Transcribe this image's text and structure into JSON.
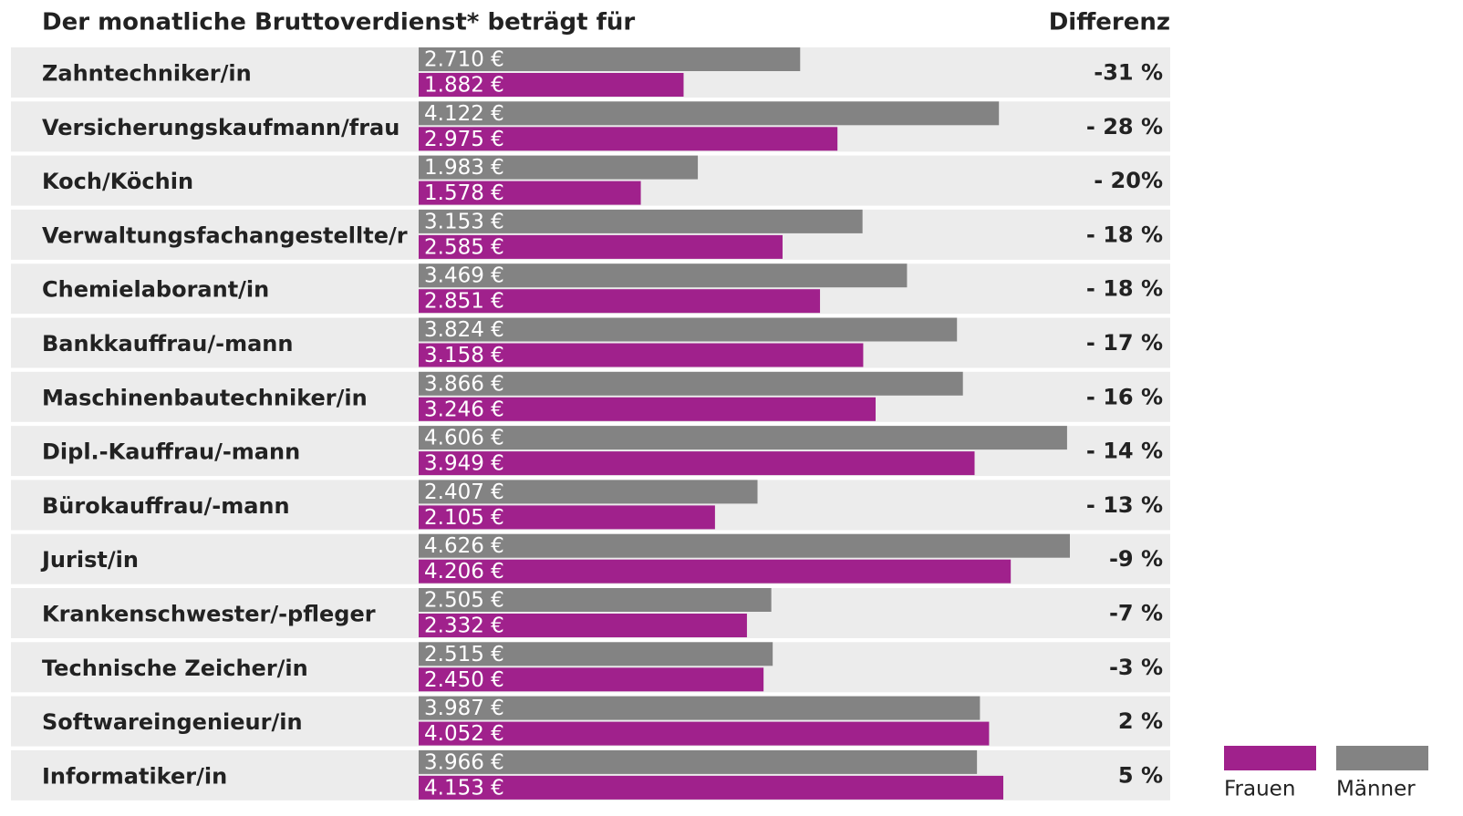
{
  "chart_data": {
    "type": "bar",
    "orientation": "horizontal",
    "title": "Der monatliche Bruttoverdienst* beträgt für",
    "difference_title": "Differenz",
    "categories": [
      "Zahntechniker/in",
      "Versicherungskaufmann/frau",
      "Koch/Köchin",
      "Verwaltungsfachangestellte/r",
      "Chemielaborant/in",
      "Bankkauffrau/-mann",
      "Maschinenbautechniker/in",
      "Dipl.-Kauffrau/-mann",
      "Bürokauffrau/-mann",
      "Jurist/in",
      "Krankenschwester/-pfleger",
      "Technische Zeicher/in",
      "Softwareingenieur/in",
      "Informatiker/in"
    ],
    "series": [
      {
        "name": "Männer",
        "color": "#838383",
        "values": [
          2710,
          4122,
          1983,
          3153,
          3469,
          3824,
          3866,
          4606,
          2407,
          4626,
          2505,
          2515,
          3987,
          3966
        ],
        "value_labels": [
          "2.710 €",
          "4.122 €",
          "1.983 €",
          "3.153 €",
          "3.469 €",
          "3.824 €",
          "3.866 €",
          "4.606 €",
          "2.407 €",
          "4.626 €",
          "2.505 €",
          "2.515 €",
          "3.987 €",
          "3.966 €"
        ]
      },
      {
        "name": "Frauen",
        "color": "#a0218c",
        "values": [
          1882,
          2975,
          1578,
          2585,
          2851,
          3158,
          3246,
          3949,
          2105,
          4206,
          2332,
          2450,
          4052,
          4153
        ],
        "value_labels": [
          "1.882 €",
          "2.975 €",
          "1.578 €",
          "2.585 €",
          "2.851 €",
          "3.158 €",
          "3.246 €",
          "3.949 €",
          "2.105 €",
          "4.206 €",
          "2.332 €",
          "2.450 €",
          "4.052 €",
          "4.153 €"
        ]
      }
    ],
    "differences": [
      "-31 %",
      "- 28 %",
      "- 20%",
      "- 18 %",
      "- 18 %",
      "- 17 %",
      "- 16 %",
      "- 14 %",
      "- 13 %",
      "-9 %",
      "-7 %",
      "-3 %",
      "2 %",
      "5 %"
    ]
  }
}
